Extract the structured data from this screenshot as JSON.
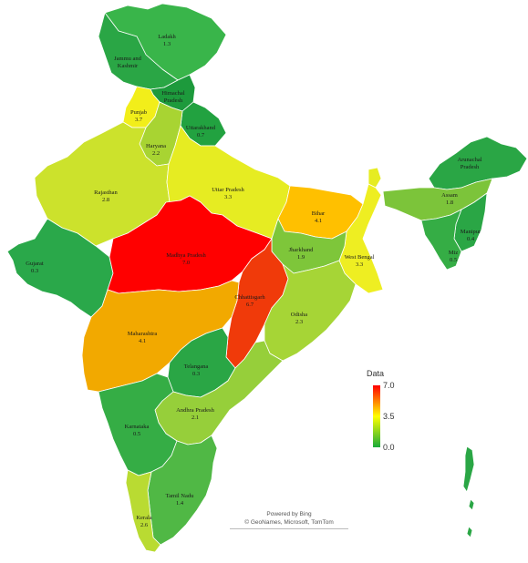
{
  "legend": {
    "title": "Data",
    "ticks": [
      "7.0",
      "3.5",
      "0.0"
    ],
    "colors": {
      "high": "#ff0000",
      "mid": "#ffff00",
      "low": "#1aaa3a"
    }
  },
  "credit": {
    "line1": "Powered by Bing",
    "line2": "© GeoNames, Microsoft, TomTom"
  },
  "states": [
    {
      "key": "ladakh",
      "name": "Ladakh",
      "value": "1.3",
      "color": "#39b54a"
    },
    {
      "key": "jk",
      "name": "Jammu and Kashmir",
      "value": "",
      "color": "#2aa645"
    },
    {
      "key": "hp",
      "name": "Himachal Pradesh",
      "value": "",
      "color": "#1d9a3c"
    },
    {
      "key": "punjab",
      "name": "Punjab",
      "value": "3.7",
      "color": "#f2ee1a"
    },
    {
      "key": "uttarakhand",
      "name": "Uttarakhand",
      "value": "0.7",
      "color": "#22a240"
    },
    {
      "key": "haryana",
      "name": "Haryana",
      "value": "2.2",
      "color": "#a8d432"
    },
    {
      "key": "rajasthan",
      "name": "Rajasthan",
      "value": "2.8",
      "color": "#cce22c"
    },
    {
      "key": "up",
      "name": "Uttar Pradesh",
      "value": "3.3",
      "color": "#e6ec22"
    },
    {
      "key": "bihar",
      "name": "Bihar",
      "value": "4.1",
      "color": "#ffc000"
    },
    {
      "key": "gujarat",
      "name": "Gujarat",
      "value": "0.3",
      "color": "#2aa84a"
    },
    {
      "key": "mp",
      "name": "Madhya Pradesh",
      "value": "7.0",
      "color": "#ff0000"
    },
    {
      "key": "jharkhand",
      "name": "Jharkhand",
      "value": "1.9",
      "color": "#7ec63a"
    },
    {
      "key": "wb",
      "name": "West Bengal",
      "value": "3.3",
      "color": "#eeee22"
    },
    {
      "key": "chhattisgarh",
      "name": "Chhattisgarh",
      "value": "6.7",
      "color": "#f03a0a"
    },
    {
      "key": "odisha",
      "name": "Odisha",
      "value": "2.3",
      "color": "#a6d536"
    },
    {
      "key": "maharashtra",
      "name": "Maharashtra",
      "value": "4.1",
      "color": "#f2a900"
    },
    {
      "key": "telangana",
      "name": "Telangana",
      "value": "0.3",
      "color": "#2aa645"
    },
    {
      "key": "ap",
      "name": "Andhra Pradesh",
      "value": "2.1",
      "color": "#96cf3a"
    },
    {
      "key": "karnataka",
      "name": "Karnataka",
      "value": "0.5",
      "color": "#35ad45"
    },
    {
      "key": "tn",
      "name": "Tamil Nadu",
      "value": "1.4",
      "color": "#50b845"
    },
    {
      "key": "kerala",
      "name": "Kerala",
      "value": "2.6",
      "color": "#b9db32"
    },
    {
      "key": "arunachal",
      "name": "Arunachal Pradesh",
      "value": "",
      "color": "#2aa645"
    },
    {
      "key": "assam",
      "name": "Assam",
      "value": "1.8",
      "color": "#7cc43a"
    },
    {
      "key": "manipur",
      "name": "Manipur",
      "value": "0.4",
      "color": "#2aa645"
    },
    {
      "key": "mizoram",
      "name": "Miz",
      "value": "0.5",
      "color": "#35ad45"
    },
    {
      "key": "sikkim",
      "name": "",
      "value": "",
      "color": "#e6ec22"
    },
    {
      "key": "islands",
      "name": "",
      "value": "",
      "color": "#2aa645"
    }
  ]
}
